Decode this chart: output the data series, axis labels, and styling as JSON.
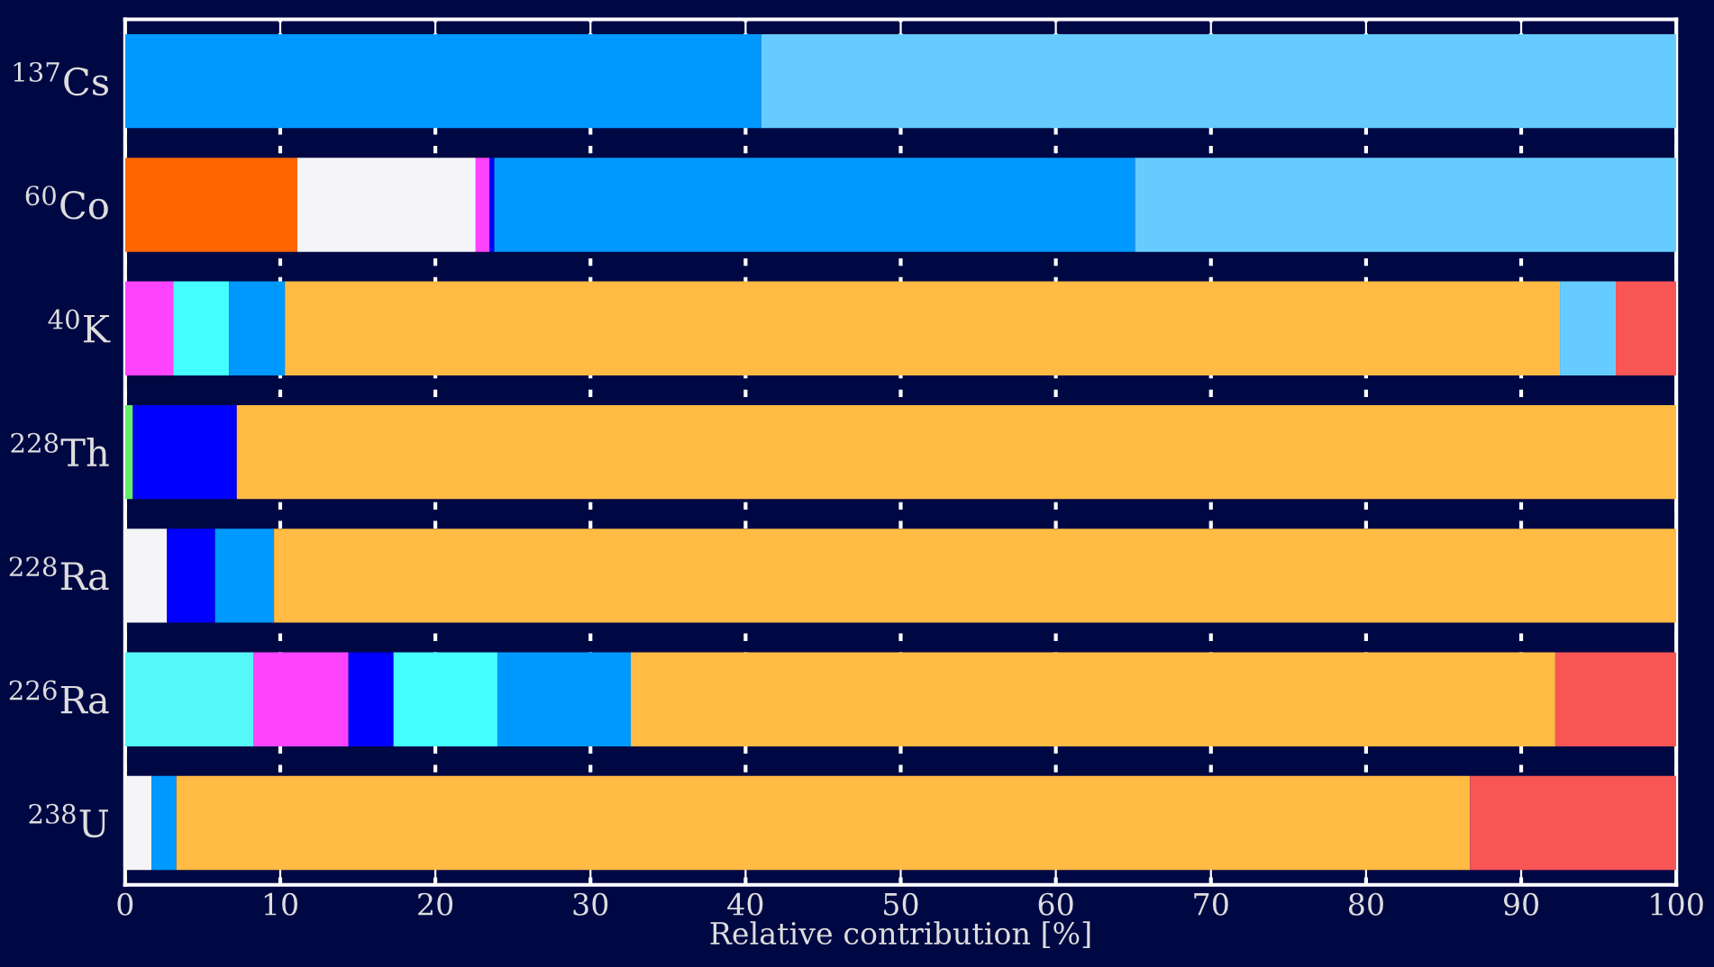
{
  "chart_data": {
    "type": "bar",
    "orientation": "horizontal",
    "stacked": true,
    "categories": [
      "$^{137}$Cs",
      "$^{60}$Co",
      "$^{40}$K",
      "$^{228}$Th",
      "$^{228}$Ra",
      "$^{226}$Ra",
      "$^{238}$U"
    ],
    "series": [
      {
        "colors": [
          "#0099ff",
          "#ff6600",
          "#ff44ff",
          "#66ee66",
          "#f5f5f8",
          "#55f8f8",
          "#f5f5f8"
        ],
        "values": [
          41.0,
          11.1,
          3.1,
          0.5,
          2.7,
          8.3,
          1.7
        ]
      },
      {
        "colors": [
          "#66ccff",
          "#f5f5f8",
          "#44ffff",
          "#0000ff",
          "#0000ff",
          "#ff44ff",
          "#0099ff"
        ],
        "values": [
          59.0,
          11.5,
          3.6,
          6.7,
          3.1,
          6.1,
          1.6
        ]
      },
      {
        "colors": [
          null,
          "#ff44ff",
          "#0099ff",
          "#ffbb44",
          "#0099ff",
          "#0000ff",
          "#ffbb44"
        ],
        "values": [
          null,
          0.9,
          3.6,
          92.8,
          3.8,
          2.9,
          83.4
        ]
      },
      {
        "colors": [
          null,
          "#0000ff",
          "#ffbb44",
          null,
          "#ffbb44",
          "#44ffff",
          "#f85555"
        ],
        "values": [
          null,
          0.3,
          82.2,
          null,
          90.4,
          6.7,
          13.3
        ]
      },
      {
        "colors": [
          null,
          "#0099ff",
          "#66ccff",
          null,
          null,
          "#0099ff",
          null
        ],
        "values": [
          null,
          41.3,
          3.6,
          null,
          null,
          8.6,
          null
        ]
      },
      {
        "colors": [
          null,
          "#66ccff",
          "#f85555",
          null,
          null,
          "#ffbb44",
          null
        ],
        "values": [
          null,
          34.9,
          3.9,
          null,
          null,
          59.6,
          null
        ]
      },
      {
        "colors": [
          null,
          null,
          null,
          null,
          null,
          "#f85555",
          null
        ],
        "values": [
          null,
          null,
          null,
          null,
          null,
          7.8,
          null
        ]
      }
    ],
    "xlabel": "Relative contribution [%]",
    "xlim": [
      0,
      100
    ],
    "xticks": [
      0,
      10,
      20,
      30,
      40,
      50,
      60,
      70,
      80,
      90,
      100
    ],
    "grid": "x"
  }
}
